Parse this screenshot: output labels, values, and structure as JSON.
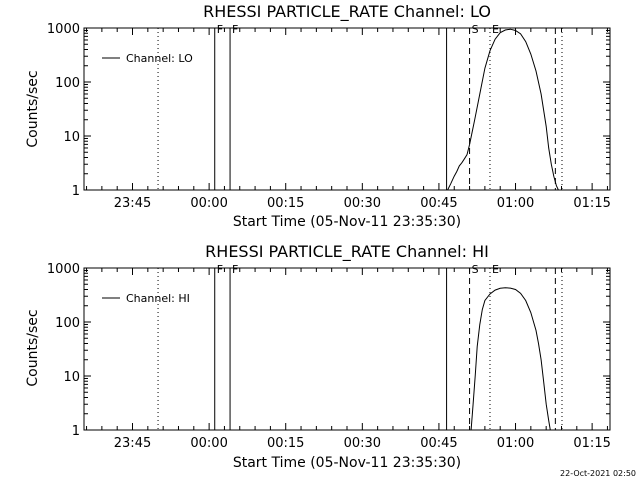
{
  "footer_date": "22-Oct-2021 02:50",
  "chart_data": [
    {
      "type": "line",
      "title": "RHESSI PARTICLE_RATE Channel: LO",
      "xlabel": "Start Time (05-Nov-11 23:35:30)",
      "ylabel": "Counts/sec",
      "y_scale": "log",
      "ylim": [
        1,
        1000
      ],
      "y_ticks": [
        "1",
        "10",
        "100",
        "1000"
      ],
      "x_unit": "minutes after 23:35:30",
      "xlim": [
        0,
        103
      ],
      "x_ticks": [
        {
          "label": "23:45",
          "x": 9.5
        },
        {
          "label": "00:00",
          "x": 24.5
        },
        {
          "label": "00:15",
          "x": 39.5
        },
        {
          "label": "00:30",
          "x": 54.5
        },
        {
          "label": "00:45",
          "x": 69.5
        },
        {
          "label": "01:00",
          "x": 84.5
        },
        {
          "label": "01:15",
          "x": 99.5
        }
      ],
      "legend": {
        "label": "Channel: LO",
        "position": "top-left"
      },
      "markers": [
        {
          "x": 14.5,
          "style": "dotted",
          "label": ""
        },
        {
          "x": 25.6,
          "style": "solid",
          "label": "F"
        },
        {
          "x": 28.6,
          "style": "solid",
          "label": "F"
        },
        {
          "x": 71.0,
          "style": "solid",
          "label": ""
        },
        {
          "x": 75.5,
          "style": "dashed",
          "label": "S"
        },
        {
          "x": 79.5,
          "style": "dotted",
          "label": "E"
        },
        {
          "x": 92.3,
          "style": "dashed",
          "label": ""
        },
        {
          "x": 93.6,
          "style": "dotted",
          "label": ""
        }
      ],
      "series": [
        {
          "name": "Channel: LO",
          "x": [
            71.2,
            71.8,
            72.5,
            73.0,
            73.5,
            74.0,
            74.5,
            75.0,
            75.5,
            76.5,
            77.5,
            78.5,
            79.5,
            80.5,
            81.5,
            82.5,
            83.5,
            84.5,
            85.5,
            86.5,
            87.5,
            88.5,
            89.5,
            90.5,
            91.0,
            91.5,
            92.0,
            92.5,
            92.9
          ],
          "y": [
            1,
            1.3,
            1.8,
            2.2,
            2.8,
            3.2,
            3.8,
            4.5,
            7,
            20,
            60,
            180,
            380,
            620,
            820,
            920,
            950,
            900,
            780,
            560,
            330,
            160,
            60,
            15,
            6,
            3,
            1.8,
            1.2,
            1
          ]
        }
      ]
    },
    {
      "type": "line",
      "title": "RHESSI PARTICLE_RATE Channel: HI",
      "xlabel": "Start Time (05-Nov-11 23:35:30)",
      "ylabel": "Counts/sec",
      "y_scale": "log",
      "ylim": [
        1,
        1000
      ],
      "y_ticks": [
        "1",
        "10",
        "100",
        "1000"
      ],
      "x_unit": "minutes after 23:35:30",
      "xlim": [
        0,
        103
      ],
      "x_ticks": [
        {
          "label": "23:45",
          "x": 9.5
        },
        {
          "label": "00:00",
          "x": 24.5
        },
        {
          "label": "00:15",
          "x": 39.5
        },
        {
          "label": "00:30",
          "x": 54.5
        },
        {
          "label": "00:45",
          "x": 69.5
        },
        {
          "label": "01:00",
          "x": 84.5
        },
        {
          "label": "01:15",
          "x": 99.5
        }
      ],
      "legend": {
        "label": "Channel: HI",
        "position": "top-left"
      },
      "markers": [
        {
          "x": 14.5,
          "style": "dotted",
          "label": ""
        },
        {
          "x": 25.6,
          "style": "solid",
          "label": "F"
        },
        {
          "x": 28.6,
          "style": "solid",
          "label": "F"
        },
        {
          "x": 71.0,
          "style": "solid",
          "label": ""
        },
        {
          "x": 75.5,
          "style": "dashed",
          "label": "S"
        },
        {
          "x": 79.5,
          "style": "dotted",
          "label": "E"
        },
        {
          "x": 92.3,
          "style": "dashed",
          "label": ""
        },
        {
          "x": 93.6,
          "style": "dotted",
          "label": ""
        }
      ],
      "series": [
        {
          "name": "Channel: HI",
          "x": [
            75.8,
            76.2,
            76.6,
            77.0,
            77.5,
            78.0,
            78.5,
            79.5,
            80.5,
            81.5,
            82.5,
            83.5,
            84.5,
            85.5,
            86.5,
            87.5,
            88.5,
            89.0,
            89.5,
            90.0,
            90.5,
            91.0,
            91.3
          ],
          "y": [
            1,
            3,
            10,
            35,
            90,
            170,
            250,
            330,
            390,
            420,
            430,
            425,
            400,
            340,
            250,
            150,
            70,
            40,
            20,
            8,
            3,
            1.5,
            1
          ]
        }
      ]
    }
  ]
}
